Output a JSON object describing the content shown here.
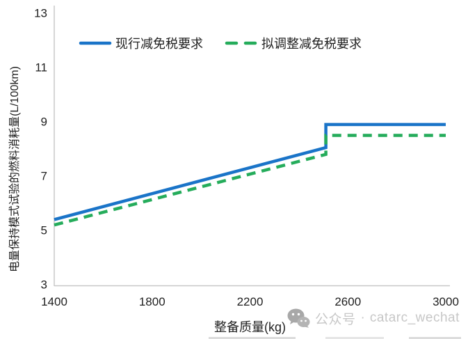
{
  "chart_data": {
    "type": "line",
    "title": "",
    "xlabel": "整备质量(kg)",
    "ylabel": "电量保持模式试验的燃料消耗量(L/100km)",
    "xlim": [
      1400,
      3000
    ],
    "ylim": [
      3,
      13
    ],
    "xticks": [
      1400,
      1800,
      2200,
      2600,
      3000
    ],
    "yticks": [
      3,
      5,
      7,
      9,
      11,
      13
    ],
    "grid": false,
    "legend_position": "top-inside",
    "series": [
      {
        "name": "现行减免税要求",
        "color": "#1a74c8",
        "style": "solid",
        "points": [
          [
            1400,
            5.4
          ],
          [
            2510,
            8.05
          ],
          [
            2510,
            8.9
          ],
          [
            3000,
            8.9
          ]
        ]
      },
      {
        "name": "拟调整减免税要求",
        "color": "#25ac5b",
        "style": "dashed",
        "points": [
          [
            1400,
            5.2
          ],
          [
            2510,
            7.8
          ],
          [
            2510,
            8.5
          ],
          [
            3000,
            8.5
          ]
        ]
      }
    ]
  },
  "watermark": {
    "icon": "wechat-icon",
    "label": "公众号",
    "separator": "·",
    "handle": "catarc_wechat"
  },
  "colors": {
    "axis_line": "#c8c8c8",
    "tick_text": "#1f1f1f",
    "watermark_gray": "#c7c7c7",
    "watermark_icon_gray": "#a8a8a8"
  }
}
